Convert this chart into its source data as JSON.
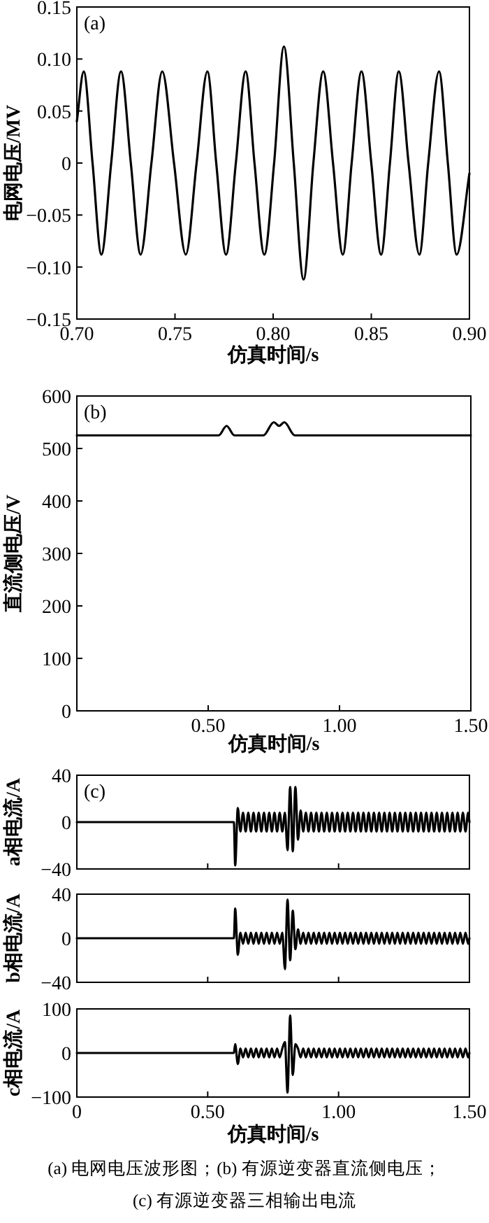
{
  "chart_data": [
    {
      "type": "line",
      "xlabel": "仿真时间/s",
      "ylabel": "电网电压/MV",
      "annotations": [
        "(a)"
      ],
      "xlim": [
        0.7,
        0.9
      ],
      "ylim": [
        -0.15,
        0.15
      ],
      "xticks": [
        {
          "value": 0.7,
          "label": "0.70"
        },
        {
          "value": 0.75,
          "label": "0.75"
        },
        {
          "value": 0.8,
          "label": "0.80"
        },
        {
          "value": 0.85,
          "label": "0.85"
        },
        {
          "value": 0.9,
          "label": "0.90"
        }
      ],
      "yticks": [
        {
          "value": -0.15,
          "label": "−0.15"
        },
        {
          "value": -0.1,
          "label": "−0.10"
        },
        {
          "value": -0.05,
          "label": "−0.05"
        },
        0,
        0.05,
        {
          "value": 0.1,
          "label": "0.10"
        },
        0.15
      ],
      "x": [
        0.7,
        0.7035,
        0.708,
        0.7125,
        0.7175,
        0.7225,
        0.7275,
        0.7325,
        0.738,
        0.7435,
        0.7495,
        0.7555,
        0.761,
        0.7665,
        0.771,
        0.776,
        0.781,
        0.786,
        0.7905,
        0.7955,
        0.8005,
        0.8055,
        0.8105,
        0.8155,
        0.8205,
        0.8255,
        0.8305,
        0.8355,
        0.84,
        0.845,
        0.85,
        0.855,
        0.8595,
        0.864,
        0.869,
        0.8745,
        0.879,
        0.8845,
        0.889,
        0.8935,
        0.9
      ],
      "series": [
        {
          "color": "#000000",
          "values": [
            0.04,
            0.088,
            0,
            -0.088,
            0,
            0.088,
            0,
            -0.088,
            0,
            0.088,
            0,
            -0.088,
            0,
            0.088,
            0,
            -0.088,
            0,
            0.088,
            0,
            -0.088,
            0,
            0.112,
            0,
            -0.112,
            0,
            0.088,
            0,
            -0.088,
            0,
            0.088,
            0,
            -0.088,
            0,
            0.088,
            0,
            -0.088,
            0,
            0.088,
            0,
            -0.088,
            -0.01
          ]
        }
      ]
    },
    {
      "type": "line",
      "xlabel": "仿真时间/s",
      "ylabel": "直流侧电压/V",
      "annotations": [
        "(b)"
      ],
      "xlim": [
        0,
        1.5
      ],
      "ylim": [
        0,
        600
      ],
      "xticks": [
        {
          "value": 0.5,
          "label": "0.50"
        },
        {
          "value": 1,
          "label": "1.00"
        },
        {
          "value": 1.5,
          "label": "1.50"
        }
      ],
      "yticks": [
        0,
        100,
        200,
        300,
        400,
        500,
        600
      ],
      "x": [
        0,
        0.54,
        0.57,
        0.6,
        0.71,
        0.75,
        0.77,
        0.79,
        0.83,
        1.5
      ],
      "series": [
        {
          "color": "#000000",
          "values": [
            525,
            525,
            543,
            525,
            525,
            550,
            543,
            550,
            525,
            525
          ]
        }
      ]
    },
    {
      "type": "line",
      "ylabel": "a相电流/A",
      "annotations": [
        "(c)"
      ],
      "xlim": [
        0,
        1.5
      ],
      "ylim": [
        -40,
        40
      ],
      "tick_labels": "y",
      "xticks": [
        {
          "value": 0,
          "label": null
        },
        {
          "value": 0.5,
          "label": null
        },
        {
          "value": 1,
          "label": null
        },
        {
          "value": 1.5,
          "label": null
        }
      ],
      "yticks": [
        -40,
        0,
        40
      ],
      "x": [
        0,
        0.6,
        0.605,
        0.615,
        0.625,
        0.635,
        0.645,
        0.655,
        0.665,
        0.675,
        0.685,
        0.695,
        0.705,
        0.715,
        0.725,
        0.735,
        0.745,
        0.755,
        0.765,
        0.775,
        0.785,
        0.795,
        0.805,
        0.815,
        0.825,
        0.835,
        0.845,
        0.855,
        0.865,
        0.875,
        0.885,
        0.895,
        0.905,
        0.915,
        0.925,
        0.935,
        0.945,
        0.955,
        0.965,
        0.975,
        0.985,
        0.995,
        1.005,
        1.015,
        1.025,
        1.035,
        1.045,
        1.055,
        1.065,
        1.075,
        1.085,
        1.095,
        1.105,
        1.115,
        1.125,
        1.135,
        1.145,
        1.155,
        1.165,
        1.175,
        1.185,
        1.195,
        1.205,
        1.215,
        1.225,
        1.235,
        1.245,
        1.255,
        1.265,
        1.275,
        1.285,
        1.295,
        1.305,
        1.315,
        1.325,
        1.335,
        1.345,
        1.355,
        1.365,
        1.375,
        1.385,
        1.395,
        1.405,
        1.415,
        1.425,
        1.435,
        1.445,
        1.455,
        1.465,
        1.475,
        1.485,
        1.495,
        1.5
      ],
      "series": [
        {
          "color": "#000000",
          "values": [
            0,
            0,
            -37,
            12,
            -8,
            8,
            -8,
            8,
            -8,
            8,
            -8,
            8,
            -8,
            8,
            -8,
            8,
            -8,
            8,
            -8,
            8,
            -8,
            8,
            -24,
            30,
            -25,
            30,
            -15,
            10,
            -8,
            8,
            -8,
            8,
            -8,
            8,
            -8,
            8,
            -8,
            8,
            -8,
            8,
            -8,
            8,
            -8,
            8,
            -8,
            8,
            -8,
            8,
            -8,
            8,
            -8,
            8,
            -8,
            8,
            -8,
            8,
            -8,
            8,
            -8,
            8,
            -8,
            8,
            -8,
            8,
            -8,
            8,
            -8,
            8,
            -8,
            8,
            -8,
            8,
            -8,
            8,
            -8,
            8,
            -8,
            8,
            -8,
            8,
            -8,
            8,
            -8,
            8,
            -8,
            8,
            -8,
            8,
            -8,
            8,
            -8,
            8,
            0
          ]
        }
      ]
    },
    {
      "type": "line",
      "ylabel": "b相电流/A",
      "xlim": [
        0,
        1.5
      ],
      "ylim": [
        -40,
        40
      ],
      "tick_labels": "y",
      "xticks": [
        {
          "value": 0,
          "label": null
        },
        {
          "value": 0.5,
          "label": null
        },
        {
          "value": 1,
          "label": null
        },
        {
          "value": 1.5,
          "label": null
        }
      ],
      "yticks": [
        -40,
        0,
        40
      ],
      "x": [
        0,
        0.6,
        0.605,
        0.615,
        0.625,
        0.635,
        0.645,
        0.655,
        0.665,
        0.675,
        0.685,
        0.695,
        0.705,
        0.715,
        0.725,
        0.735,
        0.745,
        0.755,
        0.765,
        0.775,
        0.785,
        0.795,
        0.805,
        0.815,
        0.825,
        0.835,
        0.845,
        0.855,
        0.865,
        0.875,
        0.885,
        0.895,
        0.905,
        0.915,
        0.925,
        0.935,
        0.945,
        0.955,
        0.965,
        0.975,
        0.985,
        0.995,
        1.005,
        1.015,
        1.025,
        1.035,
        1.045,
        1.055,
        1.065,
        1.075,
        1.085,
        1.095,
        1.105,
        1.115,
        1.125,
        1.135,
        1.145,
        1.155,
        1.165,
        1.175,
        1.185,
        1.195,
        1.205,
        1.215,
        1.225,
        1.235,
        1.245,
        1.255,
        1.265,
        1.275,
        1.285,
        1.295,
        1.305,
        1.315,
        1.325,
        1.335,
        1.345,
        1.355,
        1.365,
        1.375,
        1.385,
        1.395,
        1.405,
        1.415,
        1.425,
        1.435,
        1.445,
        1.455,
        1.465,
        1.475,
        1.485,
        1.495,
        1.5
      ],
      "series": [
        {
          "color": "#000000",
          "values": [
            0,
            0,
            27,
            -15,
            5,
            -5,
            5,
            -5,
            5,
            -5,
            5,
            -5,
            5,
            -5,
            5,
            -5,
            5,
            -5,
            5,
            -5,
            5,
            -28,
            35,
            -20,
            25,
            -10,
            8,
            -5,
            5,
            -5,
            5,
            -5,
            5,
            -5,
            5,
            -5,
            5,
            -5,
            5,
            -5,
            5,
            -5,
            5,
            -5,
            5,
            -5,
            5,
            -5,
            5,
            -5,
            5,
            -5,
            5,
            -5,
            5,
            -5,
            5,
            -5,
            5,
            -5,
            5,
            -5,
            5,
            -5,
            5,
            -5,
            5,
            -5,
            5,
            -5,
            5,
            -5,
            5,
            -5,
            5,
            -5,
            5,
            -5,
            5,
            -5,
            5,
            -5,
            5,
            -5,
            5,
            -5,
            5,
            -5,
            5,
            -5,
            5,
            -5,
            0
          ]
        }
      ]
    },
    {
      "type": "line",
      "xlabel": "仿真时间/s",
      "ylabel": "c相电流/A",
      "annotations": [
        "(a) 电网电压波形图；(b) 有源逆变器直流侧电压；",
        "(c) 有源逆变器三相输出电流"
      ],
      "xlim": [
        0,
        1.5
      ],
      "ylim": [
        -100,
        100
      ],
      "xticks": [
        0,
        {
          "value": 0.5,
          "label": "0.50"
        },
        {
          "value": 1,
          "label": "1.00"
        },
        {
          "value": 1.5,
          "label": "1.50"
        }
      ],
      "yticks": [
        -100,
        0,
        100
      ],
      "x": [
        0,
        0.6,
        0.605,
        0.615,
        0.625,
        0.635,
        0.645,
        0.655,
        0.665,
        0.675,
        0.685,
        0.695,
        0.705,
        0.715,
        0.725,
        0.735,
        0.745,
        0.755,
        0.765,
        0.775,
        0.785,
        0.795,
        0.805,
        0.815,
        0.825,
        0.835,
        0.845,
        0.855,
        0.865,
        0.875,
        0.885,
        0.895,
        0.905,
        0.915,
        0.925,
        0.935,
        0.945,
        0.955,
        0.965,
        0.975,
        0.985,
        0.995,
        1.005,
        1.015,
        1.025,
        1.035,
        1.045,
        1.055,
        1.065,
        1.075,
        1.085,
        1.095,
        1.105,
        1.115,
        1.125,
        1.135,
        1.145,
        1.155,
        1.165,
        1.175,
        1.185,
        1.195,
        1.205,
        1.215,
        1.225,
        1.235,
        1.245,
        1.255,
        1.265,
        1.275,
        1.285,
        1.295,
        1.305,
        1.315,
        1.325,
        1.335,
        1.345,
        1.355,
        1.365,
        1.375,
        1.385,
        1.395,
        1.405,
        1.415,
        1.425,
        1.435,
        1.445,
        1.455,
        1.465,
        1.475,
        1.485,
        1.495,
        1.5
      ],
      "series": [
        {
          "color": "#000000",
          "values": [
            0,
            0,
            20,
            -25,
            10,
            -10,
            10,
            -10,
            10,
            -10,
            10,
            -10,
            10,
            -10,
            10,
            -10,
            10,
            -10,
            10,
            -10,
            10,
            25,
            -90,
            85,
            -50,
            20,
            10,
            -10,
            10,
            -10,
            10,
            -10,
            10,
            -10,
            10,
            -10,
            10,
            -10,
            10,
            -10,
            10,
            -10,
            10,
            -10,
            10,
            -10,
            10,
            -10,
            10,
            -10,
            10,
            -10,
            10,
            -10,
            10,
            -10,
            10,
            -10,
            10,
            -10,
            10,
            -10,
            10,
            -10,
            10,
            -10,
            10,
            -10,
            10,
            -10,
            10,
            -10,
            10,
            -10,
            10,
            -10,
            10,
            -10,
            10,
            -10,
            10,
            -10,
            10,
            -10,
            10,
            -10,
            10,
            -10,
            10,
            -10,
            10,
            -10,
            0
          ]
        }
      ]
    }
  ]
}
